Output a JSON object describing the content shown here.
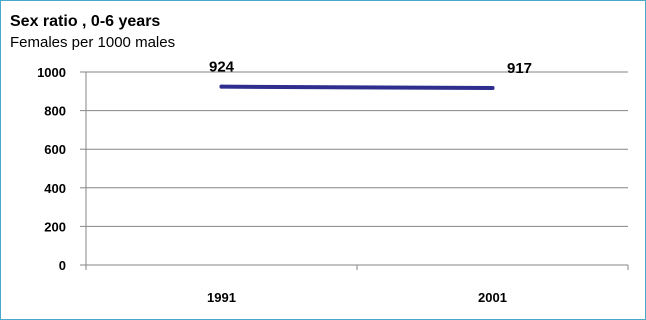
{
  "chart_data": {
    "type": "line",
    "title": "Sex ratio , 0-6 years",
    "subtitle": "Females per 1000 males",
    "categories": [
      "1991",
      "2001"
    ],
    "series": [
      {
        "values": [
          924,
          917
        ],
        "color": "#2e2e8e"
      }
    ],
    "data_labels": [
      "924",
      "917"
    ],
    "ylim": [
      0,
      1000
    ],
    "y_ticks": [
      "0",
      "200",
      "400",
      "600",
      "800",
      "1000"
    ],
    "grid": true,
    "legend": "none"
  }
}
